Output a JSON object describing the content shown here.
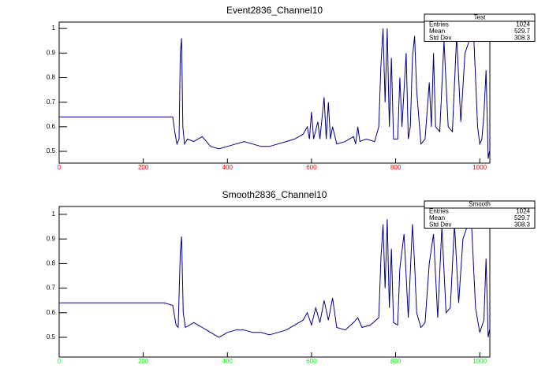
{
  "chart_data": [
    {
      "type": "line",
      "title": "Event2836_Channel10",
      "color": "#000080",
      "xtick_color": "#ff0000",
      "xlim": [
        0,
        1024
      ],
      "ylim": [
        0.452,
        1.026
      ],
      "xticks": [
        0,
        200,
        400,
        600,
        800,
        1000
      ],
      "yticks": [
        0.5,
        0.6,
        0.7,
        0.8,
        0.9,
        1
      ],
      "x": [
        0,
        50,
        100,
        150,
        200,
        250,
        270,
        275,
        280,
        285,
        288,
        291,
        294,
        298,
        305,
        320,
        340,
        360,
        380,
        400,
        420,
        440,
        460,
        480,
        500,
        520,
        540,
        560,
        580,
        590,
        595,
        600,
        605,
        615,
        620,
        630,
        635,
        640,
        645,
        650,
        660,
        680,
        700,
        705,
        710,
        715,
        730,
        750,
        760,
        765,
        770,
        775,
        780,
        785,
        790,
        795,
        805,
        810,
        815,
        825,
        830,
        835,
        840,
        845,
        850,
        860,
        870,
        880,
        885,
        890,
        895,
        905,
        915,
        925,
        935,
        945,
        955,
        965,
        975,
        985,
        995,
        1000,
        1005,
        1010,
        1015,
        1020,
        1023
      ],
      "values": [
        0.64,
        0.64,
        0.64,
        0.64,
        0.64,
        0.64,
        0.64,
        0.58,
        0.53,
        0.55,
        0.9,
        0.96,
        0.6,
        0.53,
        0.55,
        0.54,
        0.56,
        0.52,
        0.51,
        0.52,
        0.53,
        0.54,
        0.53,
        0.52,
        0.52,
        0.53,
        0.54,
        0.55,
        0.57,
        0.6,
        0.55,
        0.66,
        0.55,
        0.62,
        0.55,
        0.72,
        0.55,
        0.7,
        0.55,
        0.6,
        0.53,
        0.54,
        0.56,
        0.53,
        0.6,
        0.54,
        0.55,
        0.54,
        0.6,
        0.85,
        1.0,
        0.7,
        1.0,
        0.6,
        0.88,
        0.55,
        0.55,
        0.8,
        0.6,
        0.9,
        0.55,
        0.6,
        0.88,
        0.97,
        0.75,
        0.53,
        0.55,
        0.78,
        0.6,
        0.9,
        0.6,
        0.58,
        0.95,
        0.6,
        0.58,
        0.97,
        0.62,
        0.9,
        0.95,
        1.0,
        0.6,
        0.53,
        0.55,
        0.65,
        0.83,
        0.47,
        0.5
      ],
      "stats": {
        "name": "Test",
        "rows": [
          {
            "label": "Entries",
            "value": 1024
          },
          {
            "label": "Mean",
            "value": 529.7
          },
          {
            "label": "Std Dev",
            "value": 308.3
          }
        ]
      }
    },
    {
      "type": "line",
      "title": "Smooth2836_Channel10",
      "color": "#000080",
      "xtick_color": "#00ff00",
      "xlim": [
        0,
        1024
      ],
      "ylim": [
        0.42,
        1.032
      ],
      "xticks": [
        0,
        200,
        400,
        600,
        800,
        1000
      ],
      "yticks": [
        0.5,
        0.6,
        0.7,
        0.8,
        0.9,
        1
      ],
      "x": [
        0,
        50,
        100,
        150,
        200,
        250,
        270,
        278,
        283,
        288,
        291,
        295,
        300,
        310,
        320,
        340,
        360,
        380,
        400,
        420,
        440,
        460,
        480,
        500,
        520,
        540,
        560,
        580,
        590,
        600,
        610,
        620,
        630,
        640,
        650,
        660,
        680,
        700,
        710,
        720,
        740,
        760,
        765,
        770,
        775,
        780,
        785,
        790,
        795,
        805,
        810,
        820,
        830,
        840,
        845,
        850,
        860,
        870,
        880,
        890,
        900,
        910,
        920,
        930,
        940,
        950,
        960,
        970,
        980,
        990,
        1000,
        1010,
        1015,
        1020,
        1023
      ],
      "values": [
        0.64,
        0.64,
        0.64,
        0.64,
        0.64,
        0.64,
        0.63,
        0.55,
        0.54,
        0.85,
        0.91,
        0.6,
        0.54,
        0.55,
        0.56,
        0.54,
        0.52,
        0.5,
        0.52,
        0.53,
        0.53,
        0.52,
        0.52,
        0.51,
        0.52,
        0.53,
        0.55,
        0.57,
        0.6,
        0.55,
        0.62,
        0.56,
        0.65,
        0.57,
        0.66,
        0.54,
        0.53,
        0.56,
        0.58,
        0.54,
        0.55,
        0.58,
        0.82,
        0.96,
        0.7,
        0.98,
        0.62,
        0.86,
        0.56,
        0.55,
        0.78,
        0.92,
        0.58,
        0.96,
        0.8,
        0.6,
        0.54,
        0.56,
        0.8,
        0.92,
        0.58,
        0.95,
        0.6,
        0.62,
        0.96,
        0.64,
        0.9,
        0.95,
        0.98,
        0.62,
        0.52,
        0.57,
        0.82,
        0.5,
        0.53
      ],
      "stats": {
        "name": "Smooth",
        "rows": [
          {
            "label": "Entries",
            "value": 1024
          },
          {
            "label": "Mean",
            "value": 529.7
          },
          {
            "label": "Std Dev",
            "value": 308.3
          }
        ]
      }
    }
  ]
}
